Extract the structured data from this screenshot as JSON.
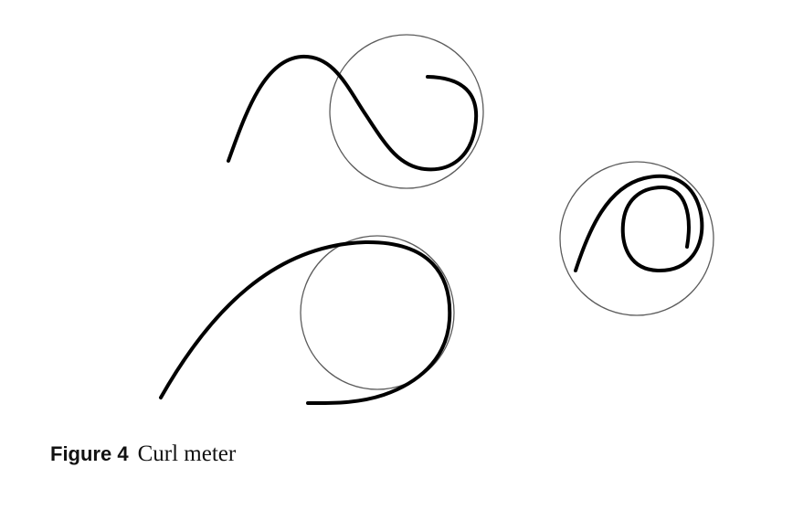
{
  "caption": {
    "label": "Figure 4",
    "text": "Curl meter"
  }
}
